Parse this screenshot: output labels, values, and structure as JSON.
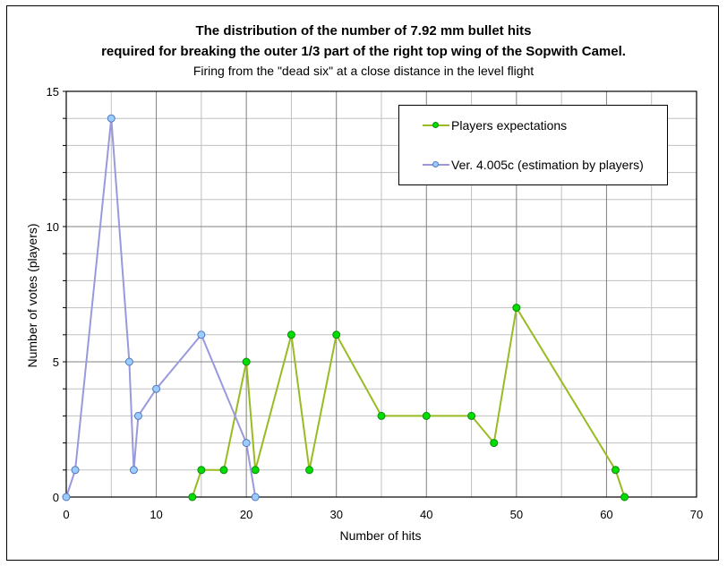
{
  "title": {
    "line1": "The distribution of the number of 7.92 mm bullet hits",
    "line2": "required for breaking the outer 1/3 part of the right top wing of the Sopwith Camel.",
    "subtitle": "Firing from the \"dead six\" at a close distance in the level flight"
  },
  "axes": {
    "xlabel": "Number of hits",
    "ylabel": "Number of votes (players)",
    "xticks": [
      "0",
      "10",
      "20",
      "30",
      "40",
      "50",
      "60",
      "70"
    ],
    "yticks": [
      "0",
      "5",
      "10",
      "15"
    ]
  },
  "legend": {
    "items": [
      {
        "label": "Players expectations",
        "line_color": "#99bb22",
        "marker_color": "#00dd00",
        "marker_border": "#118811"
      },
      {
        "label": "Ver. 4.005c (estimation by players)",
        "line_color": "#9999dd",
        "marker_color": "#99ccff",
        "marker_border": "#5577bb"
      }
    ]
  },
  "chart_data": {
    "type": "line",
    "title": "The distribution of the number of 7.92 mm bullet hits required for breaking the outer 1/3 part of the right top wing of the Sopwith Camel.",
    "subtitle": "Firing from the \"dead six\" at a close distance in the level flight",
    "xlabel": "Number of hits",
    "ylabel": "Number of votes (players)",
    "xlim": [
      0,
      70
    ],
    "ylim": [
      0,
      15
    ],
    "xticks": [
      0,
      10,
      20,
      30,
      40,
      50,
      60,
      70
    ],
    "yticks": [
      0,
      5,
      10,
      15
    ],
    "grid": {
      "major_x": 10,
      "minor_x": 5,
      "major_y": 5,
      "minor_y": 1
    },
    "legend_position": "upper right (inside plot)",
    "series": [
      {
        "name": "Players expectations",
        "color": "#99bb22",
        "marker": "circle",
        "x": [
          14,
          15,
          17.5,
          20,
          21,
          25,
          27,
          30,
          35,
          40,
          45,
          47.5,
          50,
          61,
          62
        ],
        "y": [
          0,
          1,
          1,
          5,
          1,
          6,
          1,
          6,
          3,
          3,
          3,
          2,
          7,
          1,
          0
        ]
      },
      {
        "name": "Ver. 4.005c (estimation by players)",
        "color": "#9999dd",
        "marker": "circle",
        "x": [
          0,
          1,
          5,
          7,
          7.5,
          8,
          10,
          15,
          20,
          21
        ],
        "y": [
          0,
          1,
          14,
          5,
          1,
          3,
          4,
          6,
          2,
          0
        ]
      }
    ]
  }
}
